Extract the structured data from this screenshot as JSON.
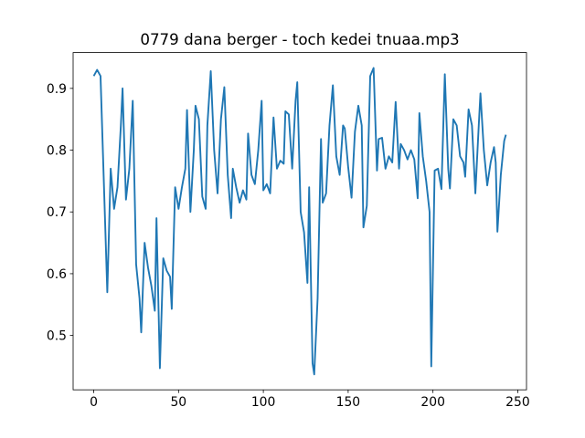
{
  "chart_data": {
    "type": "line",
    "title": "0779 dana berger - toch kedei tnuaa.mp3",
    "x": [
      0,
      2,
      4,
      8,
      10,
      12,
      14,
      16,
      17,
      19,
      21,
      23,
      25,
      27,
      28,
      30,
      32,
      34,
      36,
      37,
      39,
      41,
      43,
      45,
      46,
      48,
      50,
      52,
      54,
      55,
      57,
      59,
      60,
      62,
      64,
      66,
      67,
      69,
      71,
      73,
      75,
      77,
      79,
      81,
      82,
      84,
      86,
      88,
      90,
      91,
      93,
      95,
      97,
      99,
      100,
      102,
      104,
      106,
      108,
      110,
      112,
      113,
      115,
      117,
      119,
      120,
      122,
      124,
      126,
      127,
      129,
      130,
      132,
      134,
      135,
      137,
      139,
      141,
      143,
      145,
      147,
      148,
      150,
      152,
      154,
      156,
      158,
      159,
      161,
      163,
      165,
      167,
      168,
      170,
      172,
      174,
      176,
      178,
      180,
      181,
      183,
      185,
      187,
      189,
      191,
      192,
      194,
      196,
      198,
      199,
      201,
      203,
      205,
      207,
      209,
      210,
      212,
      214,
      216,
      218,
      219,
      221,
      223,
      225,
      227,
      228,
      230,
      232,
      234,
      236,
      237,
      238,
      240,
      242,
      243
    ],
    "values": [
      0.92,
      0.93,
      0.92,
      0.57,
      0.77,
      0.705,
      0.74,
      0.84,
      0.9,
      0.72,
      0.77,
      0.88,
      0.615,
      0.56,
      0.505,
      0.65,
      0.61,
      0.58,
      0.54,
      0.69,
      0.447,
      0.625,
      0.605,
      0.595,
      0.543,
      0.74,
      0.705,
      0.74,
      0.77,
      0.865,
      0.7,
      0.8,
      0.872,
      0.85,
      0.725,
      0.705,
      0.84,
      0.928,
      0.8,
      0.73,
      0.85,
      0.902,
      0.76,
      0.69,
      0.77,
      0.74,
      0.715,
      0.735,
      0.72,
      0.827,
      0.76,
      0.745,
      0.8,
      0.88,
      0.735,
      0.745,
      0.73,
      0.853,
      0.77,
      0.783,
      0.778,
      0.863,
      0.858,
      0.77,
      0.88,
      0.91,
      0.7,
      0.667,
      0.585,
      0.74,
      0.455,
      0.437,
      0.56,
      0.818,
      0.715,
      0.73,
      0.84,
      0.905,
      0.79,
      0.76,
      0.84,
      0.835,
      0.773,
      0.723,
      0.83,
      0.872,
      0.84,
      0.675,
      0.71,
      0.92,
      0.933,
      0.767,
      0.818,
      0.82,
      0.77,
      0.79,
      0.78,
      0.878,
      0.77,
      0.81,
      0.8,
      0.785,
      0.8,
      0.785,
      0.722,
      0.86,
      0.79,
      0.75,
      0.7,
      0.45,
      0.767,
      0.77,
      0.737,
      0.923,
      0.77,
      0.738,
      0.85,
      0.84,
      0.79,
      0.78,
      0.757,
      0.866,
      0.84,
      0.73,
      0.84,
      0.892,
      0.8,
      0.743,
      0.78,
      0.805,
      0.78,
      0.668,
      0.76,
      0.815,
      0.825
    ],
    "color": "#1f77b4",
    "xlim": [
      -12.15,
      255.15
    ],
    "ylim": [
      0.412,
      0.958
    ],
    "xticks": [
      0,
      50,
      100,
      150,
      200,
      250
    ],
    "yticks": [
      0.5,
      0.6,
      0.7,
      0.8,
      0.9
    ]
  }
}
